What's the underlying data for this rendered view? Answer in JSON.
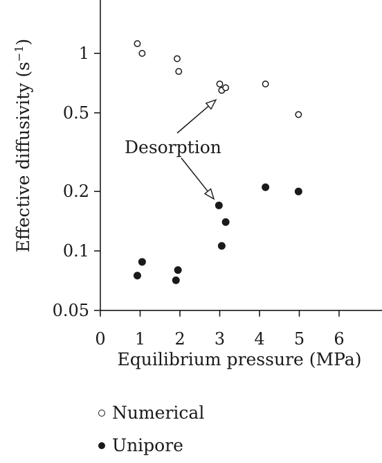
{
  "chart_data": {
    "type": "scatter",
    "xlabel": "Equilibrium pressure (MPa)",
    "ylabel": "Effective diffusivity (s",
    "ylabel_sup": "−1",
    "ylabel_close": ")",
    "xlim": [
      0,
      7
    ],
    "ylim": [
      0.05,
      1.7
    ],
    "yscale": "log",
    "x_ticks": [
      0,
      1,
      2,
      3,
      4,
      5,
      6
    ],
    "x_tick_labels": [
      "0",
      "1",
      "2",
      "3",
      "4",
      "5",
      "6"
    ],
    "y_ticks": [
      0.05,
      0.1,
      0.2,
      0.5,
      1
    ],
    "y_tick_labels": [
      "0.05",
      "0.1",
      "0.2",
      "0.5",
      "1"
    ],
    "grid": false,
    "legend_position": "bottom-left",
    "annotation": "Desorption",
    "series": [
      {
        "name": "Numerical",
        "marker": "open-circle",
        "x": [
          0.93,
          1.05,
          1.93,
          1.97,
          3.0,
          3.05,
          3.15,
          4.15,
          4.98
        ],
        "y": [
          1.12,
          1.0,
          0.94,
          0.81,
          0.7,
          0.65,
          0.67,
          0.7,
          0.49
        ]
      },
      {
        "name": "Unipore",
        "marker": "filled-circle",
        "x": [
          0.93,
          1.05,
          1.9,
          1.95,
          2.98,
          3.05,
          3.15,
          4.15,
          4.98
        ],
        "y": [
          0.075,
          0.088,
          0.071,
          0.08,
          0.17,
          0.106,
          0.14,
          0.21,
          0.2
        ]
      }
    ]
  },
  "legend": {
    "items": [
      {
        "label": "Numerical"
      },
      {
        "label": "Unipore"
      }
    ]
  },
  "colors": {
    "ink": "#1a1a1a",
    "background": "#ffffff"
  }
}
